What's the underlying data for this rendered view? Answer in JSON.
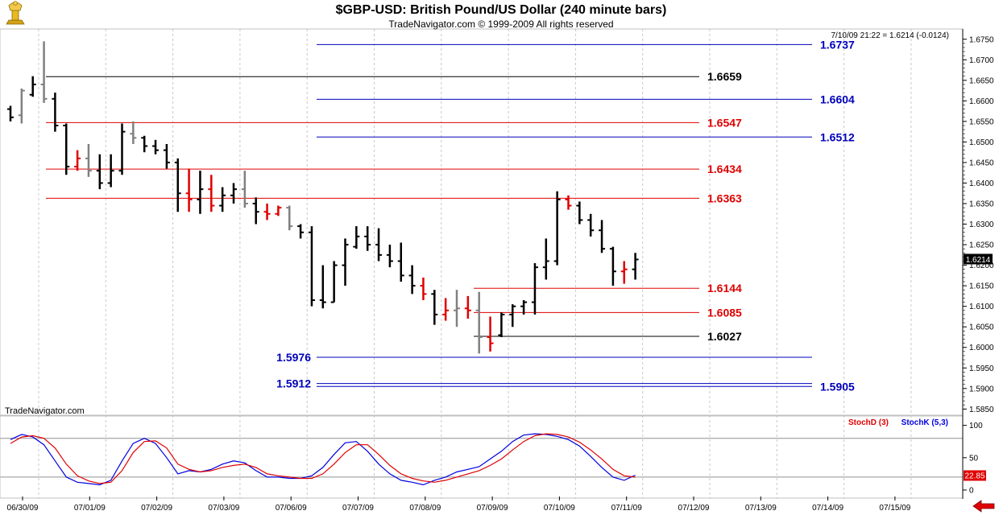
{
  "header": {
    "title": "$GBP-USD:  British Pound/US Dollar  (240 minute bars)",
    "subtitle": "TradeNavigator.com © 1999-2009 All rights reserved",
    "last_bar_info": "7/10/09 21:22 = 1.6214 (-0.0124)",
    "watermark": "TradeNavigator.com"
  },
  "colors": {
    "background": "#ffffff",
    "grid": "#c8c8c8",
    "bar_black": "#000000",
    "bar_gray": "#808080",
    "bar_red": "#e00000",
    "level_blue": "#0000bb",
    "level_red": "#e00000",
    "level_black": "#000000",
    "stoch_k": "#0000e0",
    "stoch_d": "#e00000"
  },
  "icons": {
    "logo": "golden-trophy-icon",
    "scroll": "red-left-arrow-icon"
  },
  "chart_data": [
    {
      "type": "ohlc",
      "title": "$GBP-USD:  British Pound/US Dollar  (240 minute bars)",
      "x_ticks": [
        "06/30/09",
        "07/01/09",
        "07/02/09",
        "07/03/09",
        "07/06/09",
        "07/07/09",
        "07/08/09",
        "07/09/09",
        "07/10/09",
        "07/11/09",
        "07/12/09",
        "07/13/09",
        "07/14/09",
        "07/15/09"
      ],
      "y_ticks": [
        "1.5850",
        "1.5900",
        "1.5950",
        "1.6000",
        "1.6050",
        "1.6100",
        "1.6150",
        "1.6200",
        "1.6250",
        "1.6300",
        "1.6350",
        "1.6400",
        "1.6450",
        "1.6500",
        "1.6550",
        "1.6600",
        "1.6650",
        "1.6700",
        "1.6750"
      ],
      "ylim": [
        1.5835,
        1.6775
      ],
      "y_axis_side": "right",
      "grid": true,
      "last_price_label": "1.6214",
      "bars": [
        {
          "x": 0.0,
          "o": 1.658,
          "h": 1.6588,
          "l": 1.655,
          "c": 1.656,
          "color": "black"
        },
        {
          "x": 0.25,
          "o": 1.6565,
          "h": 1.663,
          "l": 1.6545,
          "c": 1.6625,
          "color": "gray"
        },
        {
          "x": 0.5,
          "o": 1.6615,
          "h": 1.666,
          "l": 1.661,
          "c": 1.664,
          "color": "black"
        },
        {
          "x": 0.75,
          "o": 1.664,
          "h": 1.6745,
          "l": 1.6595,
          "c": 1.6605,
          "color": "gray"
        },
        {
          "x": 1.0,
          "o": 1.6605,
          "h": 1.662,
          "l": 1.6525,
          "c": 1.654,
          "color": "black"
        },
        {
          "x": 1.25,
          "o": 1.654,
          "h": 1.6545,
          "l": 1.642,
          "c": 1.644,
          "color": "black"
        },
        {
          "x": 1.5,
          "o": 1.644,
          "h": 1.648,
          "l": 1.643,
          "c": 1.646,
          "color": "red"
        },
        {
          "x": 1.75,
          "o": 1.646,
          "h": 1.6495,
          "l": 1.6415,
          "c": 1.643,
          "color": "gray"
        },
        {
          "x": 2.0,
          "o": 1.643,
          "h": 1.647,
          "l": 1.6385,
          "c": 1.64,
          "color": "black"
        },
        {
          "x": 2.25,
          "o": 1.64,
          "h": 1.647,
          "l": 1.639,
          "c": 1.643,
          "color": "black"
        },
        {
          "x": 2.5,
          "o": 1.643,
          "h": 1.6545,
          "l": 1.642,
          "c": 1.6525,
          "color": "black"
        },
        {
          "x": 2.75,
          "o": 1.652,
          "h": 1.655,
          "l": 1.6495,
          "c": 1.651,
          "color": "gray"
        },
        {
          "x": 3.0,
          "o": 1.651,
          "h": 1.6515,
          "l": 1.6475,
          "c": 1.649,
          "color": "black"
        },
        {
          "x": 3.25,
          "o": 1.649,
          "h": 1.6505,
          "l": 1.647,
          "c": 1.648,
          "color": "black"
        },
        {
          "x": 3.5,
          "o": 1.648,
          "h": 1.6495,
          "l": 1.6435,
          "c": 1.645,
          "color": "black"
        },
        {
          "x": 3.75,
          "o": 1.645,
          "h": 1.646,
          "l": 1.633,
          "c": 1.6375,
          "color": "black"
        },
        {
          "x": 4.0,
          "o": 1.6375,
          "h": 1.6435,
          "l": 1.633,
          "c": 1.636,
          "color": "red"
        },
        {
          "x": 4.25,
          "o": 1.636,
          "h": 1.643,
          "l": 1.6325,
          "c": 1.6385,
          "color": "black"
        },
        {
          "x": 4.5,
          "o": 1.6385,
          "h": 1.642,
          "l": 1.633,
          "c": 1.6345,
          "color": "red"
        },
        {
          "x": 4.75,
          "o": 1.6345,
          "h": 1.639,
          "l": 1.633,
          "c": 1.637,
          "color": "black"
        },
        {
          "x": 5.0,
          "o": 1.637,
          "h": 1.64,
          "l": 1.635,
          "c": 1.6385,
          "color": "black"
        },
        {
          "x": 5.25,
          "o": 1.6385,
          "h": 1.643,
          "l": 1.634,
          "c": 1.635,
          "color": "gray"
        },
        {
          "x": 5.5,
          "o": 1.635,
          "h": 1.6365,
          "l": 1.63,
          "c": 1.633,
          "color": "black"
        },
        {
          "x": 5.75,
          "o": 1.633,
          "h": 1.635,
          "l": 1.631,
          "c": 1.6325,
          "color": "red"
        },
        {
          "x": 6.0,
          "o": 1.6325,
          "h": 1.6345,
          "l": 1.632,
          "c": 1.634,
          "color": "red"
        },
        {
          "x": 6.25,
          "o": 1.634,
          "h": 1.6345,
          "l": 1.6285,
          "c": 1.6295,
          "color": "gray"
        },
        {
          "x": 6.5,
          "o": 1.6295,
          "h": 1.63,
          "l": 1.6265,
          "c": 1.628,
          "color": "black"
        },
        {
          "x": 6.75,
          "o": 1.628,
          "h": 1.6295,
          "l": 1.61,
          "c": 1.6115,
          "color": "black"
        },
        {
          "x": 7.0,
          "o": 1.6115,
          "h": 1.62,
          "l": 1.6095,
          "c": 1.611,
          "color": "black"
        },
        {
          "x": 7.25,
          "o": 1.611,
          "h": 1.621,
          "l": 1.611,
          "c": 1.62,
          "color": "black"
        },
        {
          "x": 7.5,
          "o": 1.62,
          "h": 1.6265,
          "l": 1.615,
          "c": 1.625,
          "color": "black"
        },
        {
          "x": 7.75,
          "o": 1.6245,
          "h": 1.6295,
          "l": 1.624,
          "c": 1.627,
          "color": "black"
        },
        {
          "x": 8.0,
          "o": 1.627,
          "h": 1.6295,
          "l": 1.6235,
          "c": 1.625,
          "color": "black"
        },
        {
          "x": 8.25,
          "o": 1.625,
          "h": 1.629,
          "l": 1.621,
          "c": 1.6225,
          "color": "black"
        },
        {
          "x": 8.5,
          "o": 1.6225,
          "h": 1.625,
          "l": 1.6195,
          "c": 1.621,
          "color": "black"
        },
        {
          "x": 8.75,
          "o": 1.621,
          "h": 1.6255,
          "l": 1.616,
          "c": 1.6175,
          "color": "black"
        },
        {
          "x": 9.0,
          "o": 1.6175,
          "h": 1.62,
          "l": 1.613,
          "c": 1.615,
          "color": "black"
        },
        {
          "x": 9.25,
          "o": 1.615,
          "h": 1.617,
          "l": 1.6115,
          "c": 1.613,
          "color": "red"
        },
        {
          "x": 9.5,
          "o": 1.613,
          "h": 1.614,
          "l": 1.6055,
          "c": 1.608,
          "color": "black"
        },
        {
          "x": 9.75,
          "o": 1.608,
          "h": 1.612,
          "l": 1.6065,
          "c": 1.609,
          "color": "red"
        },
        {
          "x": 10.0,
          "o": 1.609,
          "h": 1.614,
          "l": 1.605,
          "c": 1.6095,
          "color": "gray"
        },
        {
          "x": 10.25,
          "o": 1.6095,
          "h": 1.6125,
          "l": 1.607,
          "c": 1.609,
          "color": "red"
        },
        {
          "x": 10.5,
          "o": 1.609,
          "h": 1.6135,
          "l": 1.5985,
          "c": 1.6025,
          "color": "gray"
        },
        {
          "x": 10.75,
          "o": 1.6025,
          "h": 1.6075,
          "l": 1.599,
          "c": 1.601,
          "color": "red"
        },
        {
          "x": 11.0,
          "o": 1.603,
          "h": 1.6085,
          "l": 1.6025,
          "c": 1.608,
          "color": "black"
        },
        {
          "x": 11.25,
          "o": 1.608,
          "h": 1.6105,
          "l": 1.605,
          "c": 1.61,
          "color": "black"
        },
        {
          "x": 11.5,
          "o": 1.61,
          "h": 1.6115,
          "l": 1.608,
          "c": 1.611,
          "color": "black"
        },
        {
          "x": 11.75,
          "o": 1.611,
          "h": 1.6205,
          "l": 1.608,
          "c": 1.6195,
          "color": "black"
        },
        {
          "x": 12.0,
          "o": 1.6195,
          "h": 1.6265,
          "l": 1.6165,
          "c": 1.621,
          "color": "black"
        },
        {
          "x": 12.25,
          "o": 1.621,
          "h": 1.638,
          "l": 1.62,
          "c": 1.636,
          "color": "black"
        },
        {
          "x": 12.5,
          "o": 1.636,
          "h": 1.637,
          "l": 1.6335,
          "c": 1.6345,
          "color": "red"
        },
        {
          "x": 12.75,
          "o": 1.6345,
          "h": 1.6355,
          "l": 1.63,
          "c": 1.631,
          "color": "black"
        },
        {
          "x": 13.0,
          "o": 1.631,
          "h": 1.6325,
          "l": 1.627,
          "c": 1.6285,
          "color": "black"
        },
        {
          "x": 13.25,
          "o": 1.6285,
          "h": 1.631,
          "l": 1.623,
          "c": 1.624,
          "color": "black"
        },
        {
          "x": 13.5,
          "o": 1.624,
          "h": 1.6245,
          "l": 1.615,
          "c": 1.6185,
          "color": "black"
        },
        {
          "x": 13.75,
          "o": 1.6185,
          "h": 1.621,
          "l": 1.6155,
          "c": 1.619,
          "color": "red"
        },
        {
          "x": 14.0,
          "o": 1.619,
          "h": 1.623,
          "l": 1.6165,
          "c": 1.6214,
          "color": "black"
        }
      ],
      "levels": [
        {
          "value": 1.6737,
          "label": "1.6737",
          "color": "blue",
          "x_start": 4.75,
          "x_end": 20.0,
          "label_side": "right"
        },
        {
          "value": 1.6659,
          "label": "1.6659",
          "color": "black",
          "x_start": 0.75,
          "x_end": 17.5,
          "label_side": "mid"
        },
        {
          "value": 1.6604,
          "label": "1.6604",
          "color": "blue",
          "x_start": 4.75,
          "x_end": 20.0,
          "label_side": "right"
        },
        {
          "value": 1.6547,
          "label": "1.6547",
          "color": "red",
          "x_start": 0.75,
          "x_end": 17.5,
          "label_side": "mid"
        },
        {
          "value": 1.6512,
          "label": "1.6512",
          "color": "blue",
          "x_start": 4.75,
          "x_end": 20.0,
          "label_side": "right"
        },
        {
          "value": 1.6434,
          "label": "1.6434",
          "color": "red",
          "x_start": 0.75,
          "x_end": 17.5,
          "label_side": "mid"
        },
        {
          "value": 1.6363,
          "label": "1.6363",
          "color": "red",
          "x_start": 0.75,
          "x_end": 17.5,
          "label_side": "mid"
        },
        {
          "value": 1.6144,
          "label": "1.6144",
          "color": "red",
          "x_start": 10.5,
          "x_end": 17.5,
          "label_side": "mid"
        },
        {
          "value": 1.6085,
          "label": "1.6085",
          "color": "red",
          "x_start": 10.5,
          "x_end": 17.5,
          "label_side": "mid"
        },
        {
          "value": 1.6027,
          "label": "1.6027",
          "color": "black",
          "x_start": 10.5,
          "x_end": 17.5,
          "label_side": "mid"
        },
        {
          "value": 1.5976,
          "label": "1.5976",
          "color": "blue",
          "x_start": 4.75,
          "x_end": 20.0,
          "label_side": "left"
        },
        {
          "value": 1.5912,
          "label": "1.5912",
          "color": "blue",
          "x_start": 4.75,
          "x_end": 20.0,
          "label_side": "left"
        },
        {
          "value": 1.5905,
          "label": "1.5905",
          "color": "blue",
          "x_start": 4.75,
          "x_end": 20.0,
          "label_side": "right"
        }
      ]
    },
    {
      "type": "line",
      "title": "",
      "legend": [
        "StochD (3)",
        "StochK (5,3)"
      ],
      "y_ticks": [
        "100",
        "50",
        "0"
      ],
      "ylim": [
        -10,
        112
      ],
      "ref_lines": [
        80,
        20
      ],
      "last_value_label": "22.85",
      "series": [
        {
          "name": "StochK (5,3)",
          "color": "blue",
          "x": [
            0,
            0.25,
            0.5,
            0.75,
            1.0,
            1.25,
            1.5,
            1.75,
            2.0,
            2.25,
            2.5,
            2.75,
            3.0,
            3.25,
            3.5,
            3.75,
            4.0,
            4.25,
            4.5,
            4.75,
            5.0,
            5.25,
            5.5,
            5.75,
            6.0,
            6.25,
            6.5,
            6.75,
            7.0,
            7.25,
            7.5,
            7.75,
            8.0,
            8.25,
            8.5,
            8.75,
            9.0,
            9.25,
            9.5,
            9.75,
            10.0,
            10.25,
            10.5,
            10.75,
            11.0,
            11.25,
            11.5,
            11.75,
            12.0,
            12.25,
            12.5,
            12.75,
            13.0,
            13.25,
            13.5,
            13.75,
            14.0
          ],
          "values": [
            78,
            86,
            82,
            70,
            45,
            20,
            12,
            10,
            8,
            15,
            45,
            72,
            80,
            72,
            50,
            25,
            30,
            28,
            32,
            40,
            45,
            42,
            30,
            20,
            20,
            18,
            18,
            22,
            35,
            55,
            73,
            75,
            60,
            40,
            25,
            15,
            12,
            8,
            15,
            20,
            28,
            32,
            36,
            48,
            60,
            75,
            85,
            87,
            86,
            83,
            78,
            68,
            52,
            35,
            20,
            15,
            23
          ]
        },
        {
          "name": "StochD (3)",
          "color": "red",
          "x": [
            0,
            0.25,
            0.5,
            0.75,
            1.0,
            1.25,
            1.5,
            1.75,
            2.0,
            2.25,
            2.5,
            2.75,
            3.0,
            3.25,
            3.5,
            3.75,
            4.0,
            4.25,
            4.5,
            4.75,
            5.0,
            5.25,
            5.5,
            5.75,
            6.0,
            6.25,
            6.5,
            6.75,
            7.0,
            7.25,
            7.5,
            7.75,
            8.0,
            8.25,
            8.5,
            8.75,
            9.0,
            9.25,
            9.5,
            9.75,
            10.0,
            10.25,
            10.5,
            10.75,
            11.0,
            11.25,
            11.5,
            11.75,
            12.0,
            12.25,
            12.5,
            12.75,
            13.0,
            13.25,
            13.5,
            13.75,
            14.0
          ],
          "values": [
            72,
            82,
            84,
            80,
            65,
            40,
            22,
            14,
            10,
            12,
            30,
            58,
            75,
            76,
            65,
            40,
            32,
            28,
            30,
            35,
            38,
            40,
            35,
            25,
            22,
            20,
            18,
            18,
            25,
            40,
            58,
            70,
            70,
            55,
            38,
            25,
            18,
            14,
            12,
            15,
            20,
            25,
            30,
            38,
            48,
            62,
            75,
            84,
            87,
            86,
            82,
            74,
            62,
            48,
            32,
            22,
            20
          ]
        }
      ]
    }
  ]
}
